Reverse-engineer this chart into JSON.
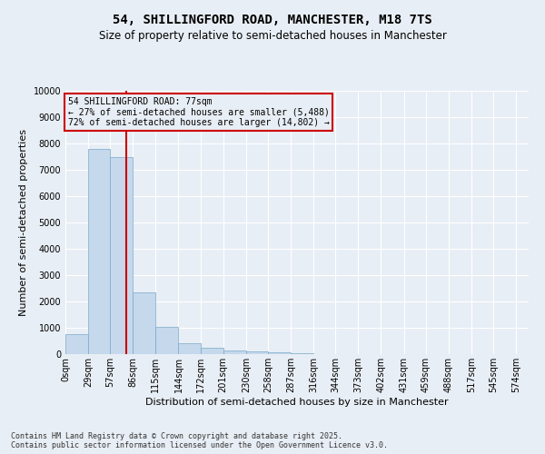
{
  "title": "54, SHILLINGFORD ROAD, MANCHESTER, M18 7TS",
  "subtitle": "Size of property relative to semi-detached houses in Manchester",
  "xlabel": "Distribution of semi-detached houses by size in Manchester",
  "ylabel": "Number of semi-detached properties",
  "property_size": 77,
  "property_label": "54 SHILLINGFORD ROAD: 77sqm",
  "pct_smaller": 27,
  "pct_larger": 72,
  "n_smaller": 5488,
  "n_larger": 14802,
  "annotation_box_color": "#cc0000",
  "bar_color": "#c5d8ec",
  "bar_edge_color": "#7aaac8",
  "vline_color": "#cc0000",
  "footer": "Contains HM Land Registry data © Crown copyright and database right 2025.\nContains public sector information licensed under the Open Government Licence v3.0.",
  "bin_labels": [
    "0sqm",
    "29sqm",
    "57sqm",
    "86sqm",
    "115sqm",
    "144sqm",
    "172sqm",
    "201sqm",
    "230sqm",
    "258sqm",
    "287sqm",
    "316sqm",
    "344sqm",
    "373sqm",
    "402sqm",
    "431sqm",
    "459sqm",
    "488sqm",
    "517sqm",
    "545sqm",
    "574sqm"
  ],
  "bin_edges": [
    0,
    29,
    57,
    86,
    115,
    144,
    172,
    201,
    230,
    258,
    287,
    316,
    344,
    373,
    402,
    431,
    459,
    488,
    517,
    545,
    574
  ],
  "bar_heights": [
    750,
    7800,
    7500,
    2350,
    1050,
    400,
    230,
    130,
    90,
    60,
    30,
    10,
    5,
    2,
    2,
    1,
    1,
    0,
    0,
    0,
    0
  ],
  "ylim": [
    0,
    10000
  ],
  "yticks": [
    0,
    1000,
    2000,
    3000,
    4000,
    5000,
    6000,
    7000,
    8000,
    9000,
    10000
  ],
  "bg_color": "#e8eef5",
  "grid_color": "#ffffff",
  "title_fontsize": 10,
  "subtitle_fontsize": 8.5,
  "axis_label_fontsize": 8,
  "tick_fontsize": 7,
  "ylabel_fontsize": 8
}
